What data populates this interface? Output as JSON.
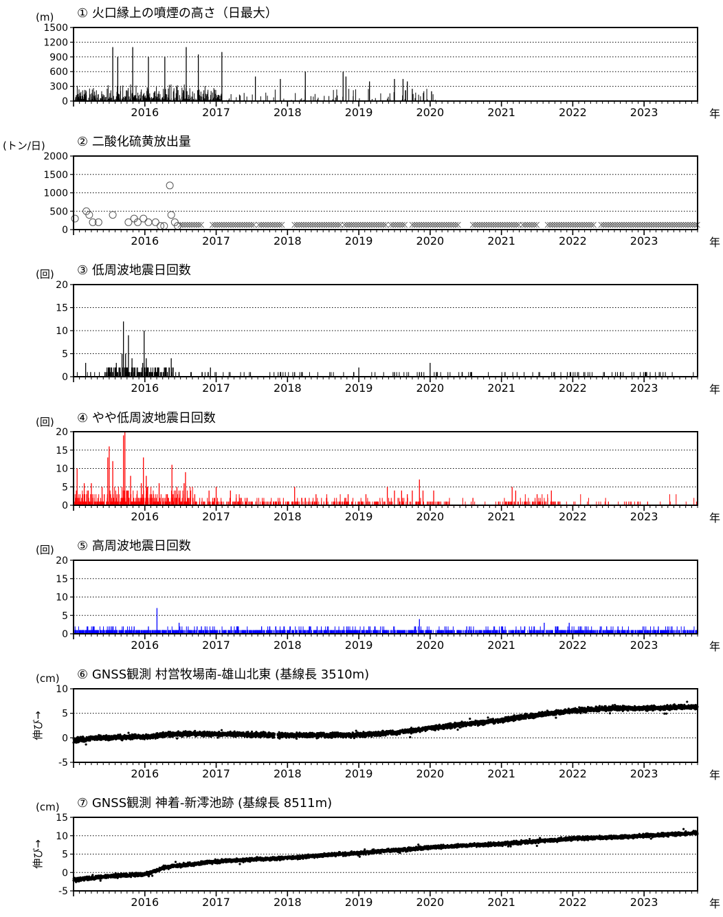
{
  "x_axis": {
    "year_labels": [
      "2016",
      "2017",
      "2018",
      "2019",
      "2020",
      "2021",
      "2022",
      "2023"
    ],
    "unit_label": "年",
    "start": 2015.0,
    "end": 2023.75
  },
  "chart_data": [
    {
      "type": "bar",
      "title": "① 火口縁上の噴煙の高さ（日最大）",
      "ylabel": "(m)",
      "ylim": [
        0,
        1500
      ],
      "yticks": [
        0,
        300,
        600,
        900,
        1200,
        1500
      ],
      "color": "#000000",
      "x_range": [
        2015.0,
        2020.1
      ],
      "peaks": [
        [
          2015.55,
          1100
        ],
        [
          2015.62,
          900
        ],
        [
          2015.83,
          1100
        ],
        [
          2016.05,
          900
        ],
        [
          2016.28,
          900
        ],
        [
          2016.58,
          1100
        ],
        [
          2016.75,
          950
        ],
        [
          2017.08,
          1000
        ],
        [
          2017.55,
          500
        ],
        [
          2017.9,
          450
        ],
        [
          2018.25,
          600
        ],
        [
          2018.78,
          600
        ],
        [
          2018.82,
          500
        ],
        [
          2019.15,
          400
        ],
        [
          2019.5,
          450
        ],
        [
          2019.62,
          450
        ],
        [
          2019.68,
          400
        ],
        [
          2019.75,
          250
        ],
        [
          2020.02,
          200
        ]
      ]
    },
    {
      "type": "scatter",
      "title": "② 二酸化硫黄放出量",
      "ylabel": "(トン/日)",
      "ylim": [
        0,
        2000
      ],
      "yticks": [
        0,
        500,
        1000,
        1500,
        2000
      ],
      "color": "#000000",
      "series": [
        {
          "marker": "circle",
          "x": [
            2015.02,
            2015.18,
            2015.22,
            2015.27,
            2015.35,
            2015.55,
            2015.77,
            2015.85,
            2015.9,
            2015.98,
            2016.05,
            2016.15,
            2016.22,
            2016.27,
            2016.35,
            2016.37,
            2016.42,
            2016.46
          ],
          "y": [
            300,
            500,
            400,
            200,
            200,
            400,
            200,
            300,
            200,
            300,
            200,
            200,
            100,
            100,
            1200,
            400,
            200,
            100
          ]
        },
        {
          "marker": "x",
          "x_ranges": [
            [
              2016.5,
              2016.8
            ],
            [
              2016.95,
              2017.55
            ],
            [
              2017.6,
              2017.95
            ],
            [
              2018.1,
              2018.75
            ],
            [
              2018.8,
              2019.4
            ],
            [
              2019.45,
              2019.65
            ],
            [
              2019.75,
              2020.4
            ],
            [
              2020.6,
              2021.25
            ],
            [
              2021.3,
              2021.5
            ],
            [
              2021.65,
              2022.3
            ],
            [
              2022.4,
              2023.75
            ]
          ],
          "y": 130
        }
      ]
    },
    {
      "type": "bar",
      "title": "③ 低周波地震日回数",
      "ylabel": "(回)",
      "ylim": [
        0,
        20
      ],
      "yticks": [
        0,
        5,
        10,
        15,
        20
      ],
      "color": "#000000",
      "peaks": [
        [
          2015.17,
          3
        ],
        [
          2015.5,
          2
        ],
        [
          2015.6,
          3
        ],
        [
          2015.68,
          5
        ],
        [
          2015.7,
          12
        ],
        [
          2015.73,
          5
        ],
        [
          2015.77,
          9
        ],
        [
          2015.82,
          4
        ],
        [
          2015.97,
          3
        ],
        [
          2015.99,
          10
        ],
        [
          2016.02,
          4
        ],
        [
          2016.04,
          2
        ],
        [
          2016.15,
          2
        ],
        [
          2016.3,
          2
        ],
        [
          2016.37,
          4
        ],
        [
          2016.92,
          2
        ],
        [
          2017.9,
          1
        ],
        [
          2018.1,
          1
        ],
        [
          2018.2,
          1
        ],
        [
          2019.0,
          2
        ],
        [
          2019.5,
          1
        ],
        [
          2019.85,
          1
        ],
        [
          2019.88,
          1
        ],
        [
          2020.0,
          3
        ],
        [
          2020.1,
          1
        ],
        [
          2021.05,
          1
        ]
      ]
    },
    {
      "type": "bar",
      "title": "④ やや低周波地震日回数",
      "ylabel": "(回)",
      "ylim": [
        0,
        20
      ],
      "yticks": [
        0,
        5,
        10,
        15,
        20
      ],
      "color": "#ff0000",
      "peaks": [
        [
          2015.05,
          10
        ],
        [
          2015.15,
          6
        ],
        [
          2015.25,
          6
        ],
        [
          2015.4,
          5
        ],
        [
          2015.48,
          13
        ],
        [
          2015.5,
          16
        ],
        [
          2015.55,
          12
        ],
        [
          2015.7,
          19
        ],
        [
          2015.72,
          20
        ],
        [
          2015.8,
          8
        ],
        [
          2015.95,
          6
        ],
        [
          2015.98,
          13
        ],
        [
          2016.02,
          8
        ],
        [
          2016.2,
          6
        ],
        [
          2016.38,
          11
        ],
        [
          2016.45,
          5
        ],
        [
          2016.55,
          6
        ],
        [
          2016.57,
          9
        ],
        [
          2016.7,
          3
        ],
        [
          2016.9,
          4
        ],
        [
          2017.0,
          5
        ],
        [
          2017.2,
          4
        ],
        [
          2018.1,
          5
        ],
        [
          2018.4,
          3
        ],
        [
          2018.85,
          3
        ],
        [
          2019.1,
          3
        ],
        [
          2019.4,
          5
        ],
        [
          2019.5,
          4
        ],
        [
          2019.6,
          4
        ],
        [
          2019.68,
          3
        ],
        [
          2019.75,
          4
        ],
        [
          2019.85,
          7
        ],
        [
          2019.9,
          4
        ],
        [
          2020.05,
          4
        ],
        [
          2020.6,
          2
        ],
        [
          2021.15,
          5
        ],
        [
          2021.2,
          4
        ],
        [
          2021.5,
          3
        ],
        [
          2021.7,
          4
        ],
        [
          2022.5,
          1
        ],
        [
          2022.75,
          1
        ],
        [
          2023.05,
          1
        ]
      ]
    },
    {
      "type": "bar",
      "title": "⑤ 高周波地震日回数",
      "ylabel": "(回)",
      "ylim": [
        0,
        20
      ],
      "yticks": [
        0,
        5,
        10,
        15,
        20
      ],
      "color": "#0000ff",
      "peaks": [
        [
          2015.2,
          2
        ],
        [
          2015.55,
          2
        ],
        [
          2015.85,
          2
        ],
        [
          2016.05,
          2
        ],
        [
          2016.17,
          7
        ],
        [
          2016.48,
          3
        ],
        [
          2017.3,
          2
        ],
        [
          2017.75,
          2
        ],
        [
          2018.85,
          2
        ],
        [
          2019.85,
          4
        ],
        [
          2020.55,
          2
        ],
        [
          2021.6,
          3
        ],
        [
          2021.95,
          3
        ],
        [
          2022.4,
          2
        ],
        [
          2023.2,
          2
        ]
      ]
    },
    {
      "type": "scatter",
      "title": "⑥ GNSS観測 村営牧場南-雄山北東  (基線長 3510m)",
      "ylabel": "(cm)",
      "y_note": "伸び→",
      "ylim": [
        -5,
        10
      ],
      "yticks": [
        -5,
        0,
        5,
        10
      ],
      "color": "#000000",
      "trend": {
        "x": [
          2015.0,
          2015.3,
          2016.0,
          2016.4,
          2017.0,
          2018.0,
          2019.0,
          2019.5,
          2020.0,
          2020.5,
          2021.0,
          2021.5,
          2022.0,
          2022.5,
          2023.0,
          2023.75
        ],
        "y": [
          -0.5,
          0.0,
          0.2,
          0.8,
          0.8,
          0.5,
          0.6,
          1.0,
          2.0,
          2.8,
          3.6,
          4.7,
          5.5,
          6.0,
          6.0,
          6.3
        ]
      }
    },
    {
      "type": "scatter",
      "title": "⑦ GNSS観測 神着-新澪池跡  (基線長 8511m)",
      "ylabel": "(cm)",
      "y_note": "伸び→",
      "ylim": [
        -5,
        15
      ],
      "yticks": [
        -5,
        0,
        5,
        10,
        15
      ],
      "color": "#000000",
      "trend": {
        "x": [
          2015.0,
          2015.5,
          2016.0,
          2016.3,
          2017.0,
          2018.0,
          2019.0,
          2020.0,
          2021.0,
          2022.0,
          2022.5,
          2023.0,
          2023.75
        ],
        "y": [
          -2.0,
          -1.0,
          -0.5,
          1.5,
          3.0,
          4.0,
          5.3,
          6.8,
          7.8,
          9.2,
          9.5,
          10.0,
          10.8
        ]
      }
    }
  ]
}
